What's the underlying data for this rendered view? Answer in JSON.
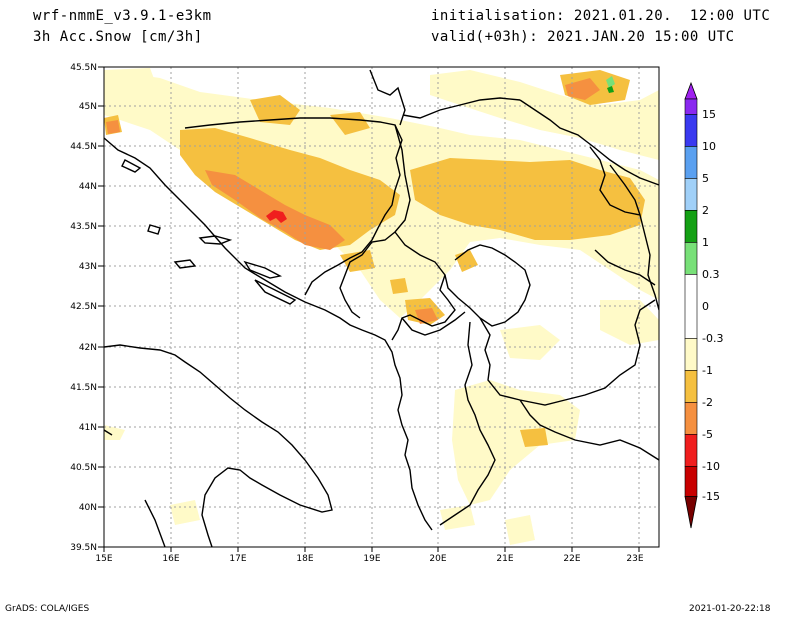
{
  "header": {
    "model": "wrf-nmmE_v3.9.1-e3km",
    "field": "3h Acc.Snow [cm/3h]",
    "init": "initialisation: 2021.01.20.  12:00 UTC",
    "valid": "valid(+03h): 2021.JAN.20 15:00 UTC"
  },
  "map": {
    "lat_labels": [
      "45.5N",
      "45N",
      "44.5N",
      "44N",
      "43.5N",
      "43N",
      "42.5N",
      "42N",
      "41.5N",
      "41N",
      "40.5N",
      "40N",
      "39.5N"
    ],
    "lon_labels": [
      "15E",
      "16E",
      "17E",
      "18E",
      "19E",
      "20E",
      "21E",
      "22E",
      "23E"
    ],
    "lat_range": [
      39.5,
      45.5
    ],
    "lon_range": [
      15,
      23.3
    ]
  },
  "colorbar": {
    "labels": [
      "15",
      "10",
      "5",
      "2",
      "1",
      "0.3",
      "0",
      "-0.3",
      "-1",
      "-2",
      "-5",
      "-10",
      "-15"
    ],
    "colors": [
      "#a020f0",
      "#3a3af0",
      "#5aa0f0",
      "#a0d0f8",
      "#14a014",
      "#78e078",
      "#ffffff",
      "#fffac8",
      "#f5c040",
      "#f59040",
      "#f01e1e",
      "#c80000",
      "#780000"
    ]
  },
  "footer": {
    "left": "GrADS: COLA/IGES",
    "right": "2021-01-20-22:18"
  }
}
